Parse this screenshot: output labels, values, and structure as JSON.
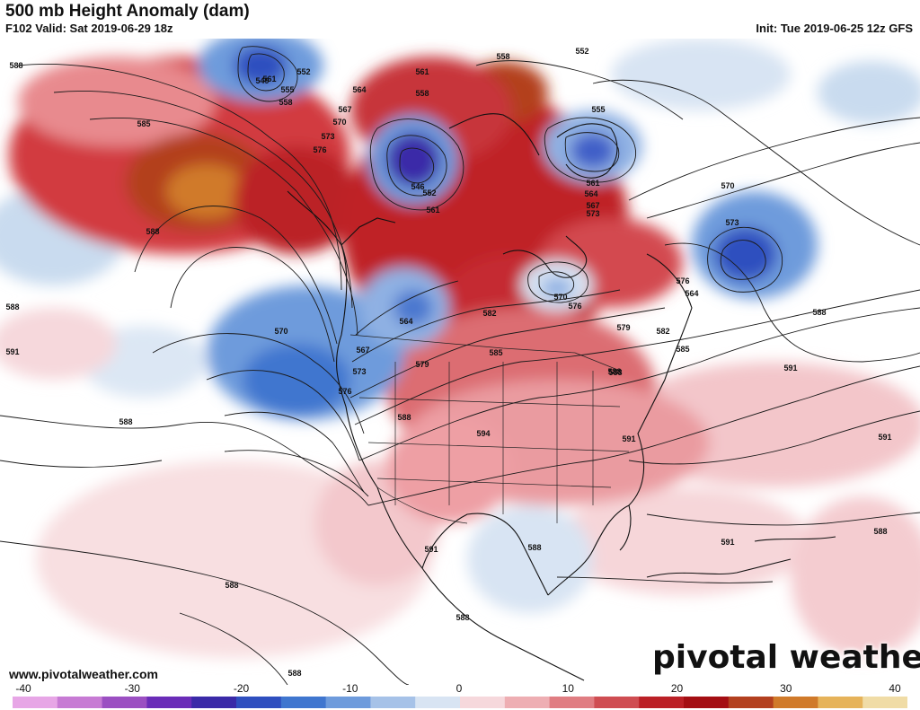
{
  "header": {
    "title": "500 mb Height Anomaly (dam)",
    "valid": "F102 Valid: Sat 2019-06-29 18z",
    "init": "Init: Tue 2019-06-25 12z GFS"
  },
  "footer": {
    "website": "www.pivotalweather.com",
    "brand": "pivotal weather"
  },
  "colorbar": {
    "ticks": [
      "-40",
      "-30",
      "-20",
      "-10",
      "0",
      "10",
      "20",
      "30",
      "40"
    ],
    "negative_colors": [
      "#e7a6e6",
      "#c77bd4",
      "#9b4fc2",
      "#6a2cb8",
      "#3a2aa8",
      "#2f4fbf",
      "#3f76cf",
      "#6e9bdc",
      "#a6c2e8",
      "#d8e4f3"
    ],
    "positive_colors": [
      "#f6d8dc",
      "#eeaeb3",
      "#e07d82",
      "#cf4d52",
      "#bb2026",
      "#a40e13",
      "#b3401f",
      "#d07a2a",
      "#e6b35a",
      "#f0dca6"
    ]
  },
  "contour_labels": [
    "588",
    "585",
    "588",
    "561",
    "558",
    "555",
    "549",
    "552",
    "564",
    "567",
    "570",
    "573",
    "576",
    "561",
    "558",
    "546",
    "552",
    "561",
    "558",
    "552",
    "555",
    "561",
    "564",
    "567",
    "573",
    "570",
    "573",
    "576",
    "564",
    "570",
    "576",
    "579",
    "582",
    "585",
    "588",
    "591",
    "588",
    "570",
    "567",
    "564",
    "573",
    "576",
    "579",
    "582",
    "585",
    "588",
    "594",
    "591",
    "591",
    "591",
    "588",
    "591",
    "588",
    "588",
    "588",
    "588",
    "588",
    "588",
    "591",
    "588"
  ]
}
